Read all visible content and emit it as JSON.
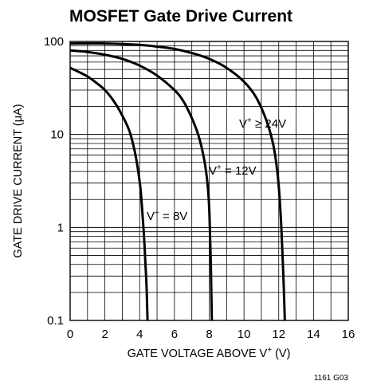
{
  "chart_data": {
    "type": "line",
    "title": "MOSFET Gate Drive Current",
    "xlabel": "GATE VOLTAGE ABOVE V",
    "xlabel_sup": "+",
    "xlabel_unit": " (V)",
    "ylabel_pre": "GATE DRIVE CURRENT (",
    "ylabel_mu": "μ",
    "ylabel_post": "A)",
    "xlim": [
      0,
      16
    ],
    "ylim": [
      0.1,
      100
    ],
    "yscale": "log",
    "grid": true,
    "x_ticks": [
      "0",
      "2",
      "4",
      "6",
      "8",
      "10",
      "12",
      "14",
      "16"
    ],
    "y_ticks": [
      "0.1",
      "1",
      "10",
      "100"
    ],
    "series": [
      {
        "label_v": "V",
        "label_sup": "+",
        "label_rest": " = 8V",
        "points": [
          [
            0,
            52
          ],
          [
            0.5,
            47
          ],
          [
            1,
            42
          ],
          [
            1.5,
            36
          ],
          [
            2,
            30
          ],
          [
            2.5,
            23
          ],
          [
            3,
            16
          ],
          [
            3.4,
            11
          ],
          [
            3.7,
            6.8
          ],
          [
            3.9,
            4.2
          ],
          [
            4.05,
            2.6
          ],
          [
            4.15,
            1.5
          ],
          [
            4.25,
            0.8
          ],
          [
            4.32,
            0.45
          ],
          [
            4.4,
            0.22
          ],
          [
            4.45,
            0.1
          ]
        ]
      },
      {
        "label_v": "V",
        "label_sup": "+",
        "label_rest": " = 12V",
        "points": [
          [
            0,
            80
          ],
          [
            1,
            77
          ],
          [
            2,
            72
          ],
          [
            3,
            65
          ],
          [
            4,
            55
          ],
          [
            5,
            43
          ],
          [
            6,
            30
          ],
          [
            6.5,
            23
          ],
          [
            7,
            15
          ],
          [
            7.4,
            9.5
          ],
          [
            7.7,
            5.5
          ],
          [
            7.9,
            3
          ],
          [
            8.0,
            1.6
          ],
          [
            8.05,
            0.8
          ],
          [
            8.1,
            0.35
          ],
          [
            8.15,
            0.1
          ]
        ]
      },
      {
        "label_v": "V",
        "label_sup": "+",
        "label_rest": " ≥ 24V",
        "points": [
          [
            0,
            95
          ],
          [
            2,
            95
          ],
          [
            4,
            92
          ],
          [
            5,
            88
          ],
          [
            6,
            83
          ],
          [
            7,
            75
          ],
          [
            8,
            65
          ],
          [
            9,
            52
          ],
          [
            10,
            37
          ],
          [
            10.7,
            25
          ],
          [
            11.3,
            14
          ],
          [
            11.7,
            7.5
          ],
          [
            11.95,
            3.5
          ],
          [
            12.1,
            1.5
          ],
          [
            12.2,
            0.6
          ],
          [
            12.28,
            0.25
          ],
          [
            12.35,
            0.1
          ]
        ]
      }
    ],
    "footnote": "1161 G03"
  }
}
